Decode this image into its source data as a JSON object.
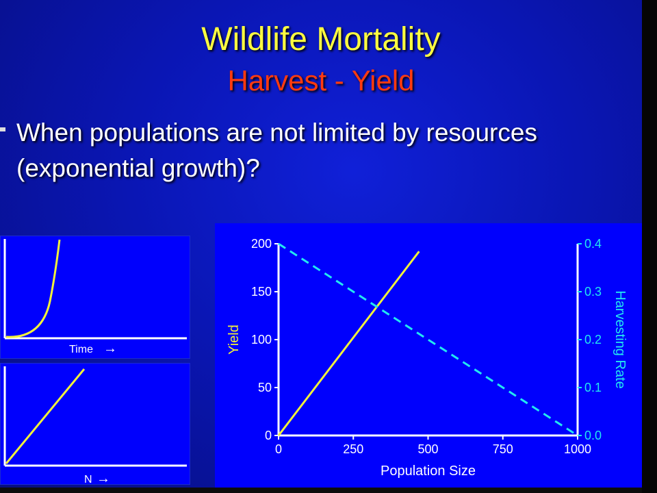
{
  "title": "Wildlife Mortality",
  "subtitle": "Harvest - Yield",
  "bullet": "When populations are not limited by resources (exponential growth)?",
  "left_top_chart": {
    "xlabel": "Time",
    "arrow": "→"
  },
  "left_bottom_chart": {
    "xlabel": "N",
    "arrow": "→"
  },
  "colors": {
    "yield": "#f2f23a",
    "harvest": "#22e8f0",
    "axis": "#ffffff"
  },
  "chart_data": {
    "type": "line",
    "xlabel": "Population Size",
    "ylabel": "Yield",
    "y2label": "Harvesting Rate",
    "xlim": [
      0,
      1000
    ],
    "ylim": [
      0,
      200
    ],
    "y2lim": [
      0,
      0.4
    ],
    "xticks": [
      "0",
      "250",
      "500",
      "750",
      "1000"
    ],
    "yticks": [
      "0",
      "50",
      "100",
      "150",
      "200"
    ],
    "y2ticks": [
      "0.0",
      "0.1",
      "0.2",
      "0.3",
      "0.4"
    ],
    "series": [
      {
        "name": "Yield",
        "axis": "left",
        "style": "solid",
        "x": [
          0,
          470
        ],
        "y": [
          0,
          192
        ]
      },
      {
        "name": "Harvesting Rate",
        "axis": "right",
        "style": "dashed",
        "x": [
          0,
          1000
        ],
        "y": [
          0.4,
          0.0
        ]
      }
    ]
  }
}
